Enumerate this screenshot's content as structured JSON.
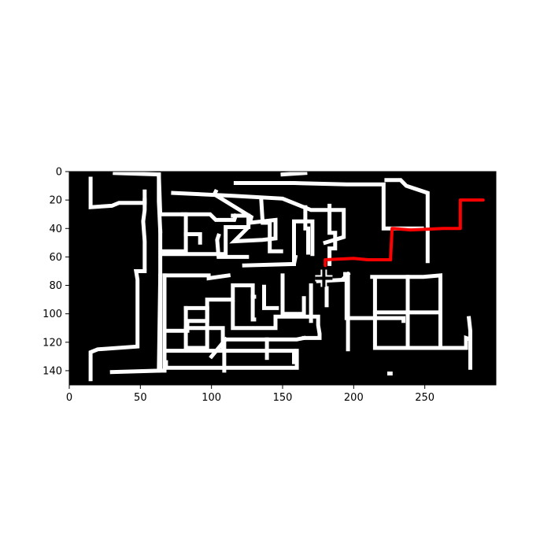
{
  "chart_data": {
    "type": "image",
    "title": "",
    "xlabel": "",
    "ylabel": "",
    "xlim": [
      0,
      300
    ],
    "ylim": [
      150,
      0
    ],
    "x_ticks": [
      0,
      50,
      100,
      150,
      200,
      250
    ],
    "y_ticks": [
      0,
      20,
      40,
      60,
      80,
      100,
      120,
      140
    ],
    "colors": {
      "background": "#000000",
      "walls": "#ffffff",
      "path": "#ff0000",
      "marker": "#000000",
      "marker_outline": "#ffffff"
    },
    "walls": [
      [
        [
          32,
          1
        ],
        [
          63,
          2
        ],
        [
          64,
          30
        ],
        [
          67,
          30
        ],
        [
          82,
          30
        ],
        [
          82,
          44
        ],
        [
          92,
          44
        ],
        [
          92,
          50
        ]
      ],
      [
        [
          82,
          44
        ],
        [
          82,
          56
        ],
        [
          65,
          56
        ],
        [
          65,
          58
        ],
        [
          84,
          58
        ],
        [
          110,
          58
        ],
        [
          110,
          39
        ],
        [
          126,
          39
        ]
      ],
      [
        [
          63,
          2
        ],
        [
          63,
          21
        ],
        [
          64,
          42
        ]
      ],
      [
        [
          64,
          42
        ],
        [
          64,
          140
        ],
        [
          67,
          140
        ],
        [
          67,
          73
        ],
        [
          93,
          73
        ],
        [
          98,
          73
        ],
        [
          98,
          75
        ],
        [
          112,
          73
        ]
      ],
      [
        [
          73,
          15
        ],
        [
          115,
          17
        ],
        [
          150,
          19
        ],
        [
          150,
          19
        ],
        [
          170,
          27
        ],
        [
          193,
          27
        ],
        [
          193,
          37
        ],
        [
          193,
          46
        ],
        [
          180,
          50
        ]
      ],
      [
        [
          117,
          8
        ],
        [
          158,
          8
        ],
        [
          195,
          9
        ],
        [
          195,
          9
        ],
        [
          207,
          9
        ],
        [
          207,
          9
        ],
        [
          221,
          9
        ],
        [
          221,
          40
        ],
        [
          248,
          40
        ],
        [
          248,
          40
        ]
      ],
      [
        [
          103,
          14
        ],
        [
          102,
          16
        ],
        [
          128,
          32
        ],
        [
          127,
          36
        ],
        [
          145,
          34
        ],
        [
          145,
          38
        ],
        [
          145,
          47
        ],
        [
          136,
          48
        ],
        [
          116,
          49
        ],
        [
          126,
          39
        ],
        [
          126,
          31
        ],
        [
          115,
          31
        ]
      ],
      [
        [
          117,
          31
        ],
        [
          116,
          34
        ],
        [
          103,
          34
        ],
        [
          103,
          34
        ],
        [
          99,
          30
        ],
        [
          93,
          30
        ],
        [
          80,
          30
        ]
      ],
      [
        [
          105,
          45
        ],
        [
          104,
          48
        ],
        [
          105,
          60
        ],
        [
          125,
          60
        ],
        [
          125,
          60
        ]
      ],
      [
        [
          123,
          66
        ],
        [
          158,
          65
        ],
        [
          158,
          65
        ],
        [
          159,
          60
        ],
        [
          159,
          60
        ]
      ],
      [
        [
          158,
          65
        ],
        [
          158,
          35
        ],
        [
          171,
          35
        ],
        [
          171,
          58
        ]
      ],
      [
        [
          135,
          20
        ],
        [
          136,
          36
        ],
        [
          141,
          36
        ],
        [
          141,
          56
        ],
        [
          149,
          56
        ]
      ],
      [
        [
          166,
          25
        ],
        [
          166,
          40
        ],
        [
          168,
          40
        ],
        [
          168,
          57
        ]
      ],
      [
        [
          183,
          24
        ],
        [
          183,
          43
        ],
        [
          187,
          43
        ],
        [
          187,
          54
        ],
        [
          183,
          54
        ],
        [
          183,
          65
        ]
      ],
      [
        [
          223,
          6
        ],
        [
          233,
          6
        ],
        [
          237,
          10
        ],
        [
          252,
          15
        ],
        [
          252,
          30
        ],
        [
          252,
          63
        ]
      ],
      [
        [
          175,
          77
        ],
        [
          195,
          76
        ],
        [
          195,
          103
        ],
        [
          195,
          103
        ],
        [
          215,
          103
        ],
        [
          215,
          103
        ],
        [
          235,
          103
        ],
        [
          235,
          105
        ]
      ],
      [
        [
          194,
          72
        ],
        [
          196,
          72
        ],
        [
          196,
          125
        ]
      ],
      [
        [
          213,
          74
        ],
        [
          249,
          74
        ],
        [
          249,
          74
        ],
        [
          261,
          73
        ],
        [
          261,
          124
        ],
        [
          261,
          124
        ],
        [
          279,
          124
        ],
        [
          279,
          124
        ],
        [
          279,
          117
        ],
        [
          282,
          118
        ],
        [
          282,
          138
        ]
      ],
      [
        [
          215,
          76
        ],
        [
          215,
          124
        ],
        [
          241,
          124
        ],
        [
          261,
          124
        ]
      ],
      [
        [
          238,
          74
        ],
        [
          238,
          124
        ],
        [
          238,
          124
        ]
      ],
      [
        [
          215,
          99
        ],
        [
          260,
          99
        ],
        [
          260,
          99
        ]
      ],
      [
        [
          64,
          73
        ],
        [
          63,
          140
        ],
        [
          30,
          141
        ]
      ],
      [
        [
          67,
          73
        ],
        [
          67,
          122
        ],
        [
          67,
          126
        ],
        [
          120,
          126
        ],
        [
          140,
          126
        ],
        [
          140,
          126
        ],
        [
          145,
          126
        ],
        [
          158,
          126
        ],
        [
          158,
          130
        ],
        [
          158,
          134
        ]
      ],
      [
        [
          67,
          126
        ],
        [
          67,
          134
        ],
        [
          68,
          134
        ],
        [
          68,
          138
        ],
        [
          130,
          138
        ],
        [
          160,
          138
        ],
        [
          160,
          138
        ],
        [
          160,
          126
        ],
        [
          160,
          126
        ]
      ],
      [
        [
          67,
          96
        ],
        [
          67,
          112
        ],
        [
          67,
          112
        ],
        [
          83,
          112
        ],
        [
          83,
          105
        ],
        [
          97,
          105
        ],
        [
          97,
          90
        ],
        [
          115,
          90
        ],
        [
          115,
          80
        ],
        [
          129,
          80
        ],
        [
          129,
          88
        ],
        [
          130,
          88
        ]
      ],
      [
        [
          82,
          96
        ],
        [
          82,
          124
        ],
        [
          82,
          124
        ],
        [
          97,
          124
        ],
        [
          97,
          96
        ]
      ],
      [
        [
          82,
          96
        ],
        [
          97,
          96
        ],
        [
          97,
          96
        ]
      ],
      [
        [
          82,
          110
        ],
        [
          97,
          110
        ]
      ],
      [
        [
          97,
          110
        ],
        [
          108,
          110
        ],
        [
          108,
          124
        ]
      ],
      [
        [
          115,
          92
        ],
        [
          115,
          110
        ],
        [
          145,
          110
        ],
        [
          145,
          102
        ],
        [
          175,
          102
        ],
        [
          175,
          108
        ],
        [
          176,
          114
        ],
        [
          176,
          117
        ],
        [
          165,
          117
        ]
      ],
      [
        [
          129,
          88
        ],
        [
          129,
          104
        ],
        [
          130,
          104
        ]
      ],
      [
        [
          150,
          73
        ],
        [
          150,
          100
        ],
        [
          158,
          100
        ],
        [
          165,
          100
        ],
        [
          165,
          89
        ]
      ],
      [
        [
          137,
          81
        ],
        [
          137,
          96
        ],
        [
          146,
          96
        ]
      ],
      [
        [
          170,
          80
        ],
        [
          170,
          100
        ],
        [
          170,
          105
        ]
      ],
      [
        [
          181,
          82
        ],
        [
          181,
          94
        ]
      ],
      [
        [
          109,
          118
        ],
        [
          160,
          118
        ],
        [
          160,
          118
        ],
        [
          165,
          117
        ],
        [
          165,
          117
        ]
      ],
      [
        [
          109,
          118
        ],
        [
          109,
          140
        ],
        [
          109,
          140
        ]
      ],
      [
        [
          139,
          118
        ],
        [
          139,
          131
        ],
        [
          139,
          131
        ]
      ],
      [
        [
          110,
          118
        ],
        [
          100,
          130
        ],
        [
          100,
          130
        ]
      ],
      [
        [
          53,
          14
        ],
        [
          53,
          20
        ],
        [
          53,
          22
        ],
        [
          36,
          22
        ],
        [
          35,
          22
        ],
        [
          30,
          24
        ],
        [
          15,
          25
        ],
        [
          15,
          24
        ],
        [
          15,
          5
        ]
      ],
      [
        [
          53,
          20
        ],
        [
          53,
          27
        ],
        [
          52,
          35
        ],
        [
          53,
          49
        ],
        [
          53,
          68
        ]
      ],
      [
        [
          53,
          70
        ],
        [
          47,
          70
        ],
        [
          48,
          76
        ],
        [
          48,
          100
        ],
        [
          48,
          100
        ],
        [
          48,
          123
        ],
        [
          20,
          125
        ],
        [
          15,
          127
        ],
        [
          15,
          146
        ]
      ],
      [
        [
          166,
          1
        ],
        [
          166,
          1
        ],
        [
          150,
          2
        ]
      ],
      [
        [
          225,
          142
        ],
        [
          226,
          142
        ]
      ],
      [
        [
          281,
          103
        ],
        [
          281,
          103
        ],
        [
          282,
          112
        ],
        [
          282,
          134
        ]
      ],
      [
        [
          193,
          75
        ],
        [
          196,
          72
        ],
        [
          196,
          72
        ]
      ],
      [
        [
          63,
          2
        ],
        [
          63,
          2
        ]
      ]
    ],
    "path": [
      [
        291,
        20
      ],
      [
        275,
        20
      ],
      [
        275,
        40
      ],
      [
        263,
        40
      ],
      [
        240,
        41
      ],
      [
        228,
        40
      ],
      [
        227,
        40
      ],
      [
        226,
        60
      ],
      [
        226,
        62
      ],
      [
        220,
        62
      ],
      [
        210,
        62
      ],
      [
        200,
        61
      ],
      [
        180,
        62
      ],
      [
        180,
        66
      ]
    ],
    "marker": [
      179,
      75
    ]
  }
}
